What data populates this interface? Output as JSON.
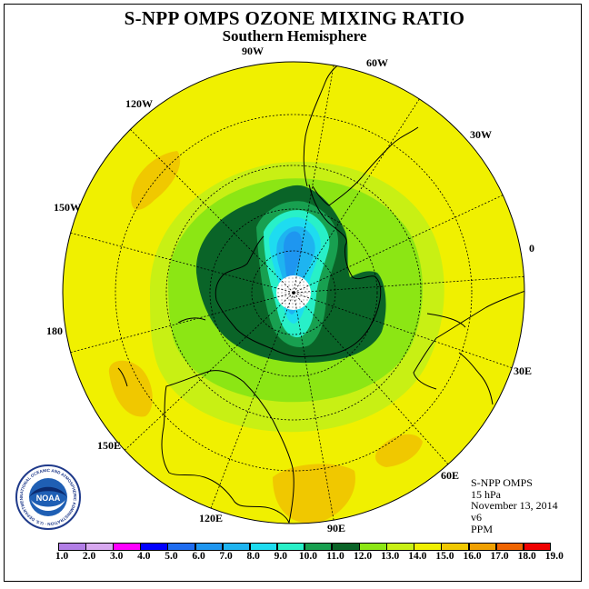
{
  "title": "S-NPP OMPS OZONE MIXING RATIO",
  "subtitle": "Southern Hemisphere",
  "longitude_labels": [
    "90W",
    "60W",
    "30W",
    "0",
    "30E",
    "60E",
    "90E",
    "120E",
    "150E",
    "180",
    "150W",
    "120W"
  ],
  "info": {
    "instrument": "S-NPP OMPS",
    "pressure": "15 hPa",
    "date": "November 13, 2014",
    "version": "v6",
    "units": "PPM"
  },
  "logo": {
    "text": "NOAA",
    "ring_text": "NATIONAL OCEANIC AND ATMOSPHERIC ADMINISTRATION · U.S. DEPARTMENT OF COMMERCE"
  },
  "colorbar": {
    "ticks": [
      "1.0",
      "2.0",
      "3.0",
      "4.0",
      "5.0",
      "6.0",
      "7.0",
      "8.0",
      "9.0",
      "10.0",
      "11.0",
      "12.0",
      "13.0",
      "14.0",
      "15.0",
      "16.0",
      "17.0",
      "18.0",
      "19.0"
    ],
    "colors": [
      "#b27ee6",
      "#d8a8f0",
      "#ff00ff",
      "#0000ff",
      "#1e6cf0",
      "#1e96f0",
      "#1eb4f0",
      "#1edcf0",
      "#28f0c8",
      "#18a050",
      "#0a6428",
      "#8ce614",
      "#c8f014",
      "#f0f000",
      "#f0c800",
      "#f0a000",
      "#f06400",
      "#f00000",
      "#8c5028"
    ]
  }
}
